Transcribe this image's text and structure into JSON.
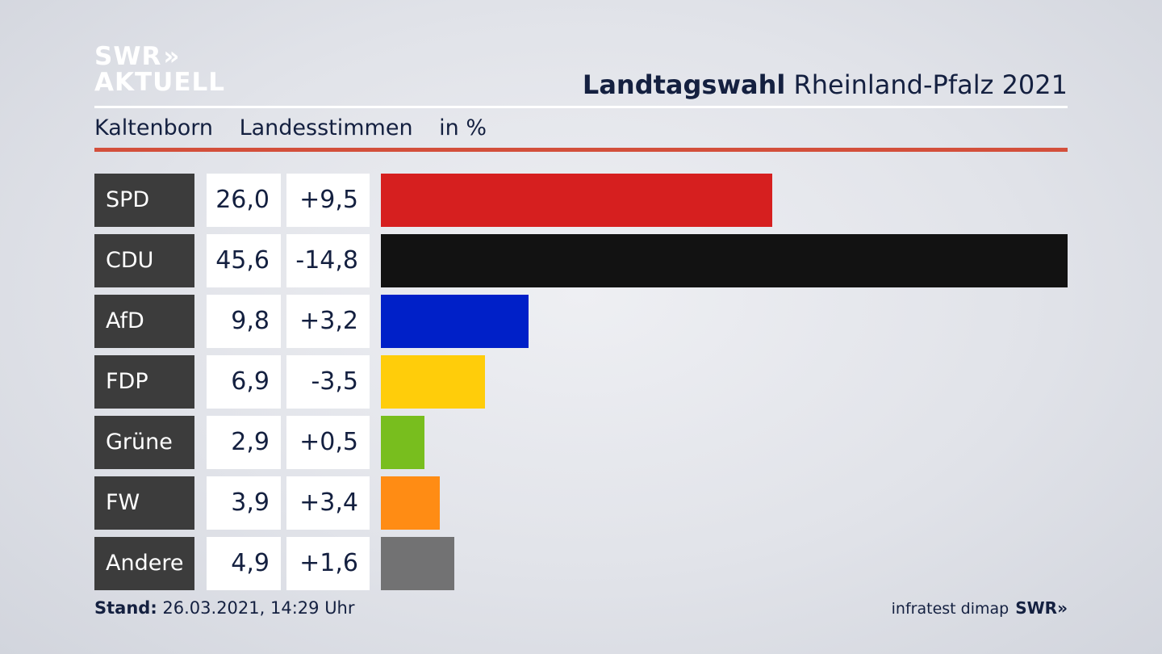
{
  "logo": {
    "line1": "SWR",
    "arrows": "»",
    "line2": "AKTUELL"
  },
  "header": {
    "title_bold": "Landtagswahl",
    "title_rest": "Rheinland-Pfalz 2021",
    "subtitle_place": "Kaltenborn",
    "subtitle_type": "Landesstimmen",
    "subtitle_unit": "in %"
  },
  "footer": {
    "stand_label": "Stand:",
    "stand_value": "26.03.2021, 14:29 Uhr",
    "source": "infratest dimap",
    "brand": "SWR",
    "brand_arrows": "»"
  },
  "chart_data": {
    "type": "bar",
    "orientation": "horizontal",
    "categories": [
      "SPD",
      "CDU",
      "AfD",
      "FDP",
      "Grüne",
      "FW",
      "Andere"
    ],
    "values": [
      26.0,
      45.6,
      9.8,
      6.9,
      2.9,
      3.9,
      4.9
    ],
    "value_labels": [
      "26,0",
      "45,6",
      "9,8",
      "6,9",
      "2,9",
      "3,9",
      "4,9"
    ],
    "diff_labels": [
      "+9,5",
      "-14,8",
      "+3,2",
      "-3,5",
      "+0,5",
      "+3,4",
      "+1,6"
    ],
    "diffs": [
      9.5,
      -14.8,
      3.2,
      -3.5,
      0.5,
      3.4,
      1.6
    ],
    "colors": [
      "#d61f1f",
      "#121212",
      "#0020c8",
      "#ffcd0a",
      "#78be1e",
      "#ff8c14",
      "#727273"
    ],
    "xlim": [
      0,
      45.6
    ],
    "grid": false,
    "legend": "none"
  }
}
